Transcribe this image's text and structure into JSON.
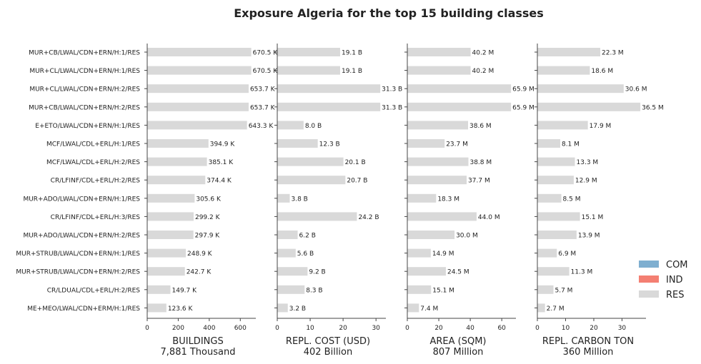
{
  "chart_data": {
    "type": "bar",
    "orientation": "horizontal",
    "title": "Exposure Algeria for the top 15 building classes",
    "categories": [
      "MUR+CB/LWAL/CDN+ERN/H:1/RES",
      "MUR+CL/LWAL/CDN+ERN/H:1/RES",
      "MUR+CL/LWAL/CDN+ERN/H:2/RES",
      "MUR+CB/LWAL/CDN+ERN/H:2/RES",
      "E+ETO/LWAL/CDN+ERN/H:1/RES",
      "MCF/LWAL/CDL+ERL/H:1/RES",
      "MCF/LWAL/CDL+ERL/H:2/RES",
      "CR/LFINF/CDL+ERL/H:2/RES",
      "MUR+ADO/LWAL/CDN+ERN/H:1/RES",
      "CR/LFINF/CDL+ERL/H:3/RES",
      "MUR+ADO/LWAL/CDN+ERN/H:2/RES",
      "MUR+STRUB/LWAL/CDN+ERN/H:1/RES",
      "MUR+STRUB/LWAL/CDN+ERN/H:2/RES",
      "CR/LDUAL/CDL+ERL/H:2/RES",
      "ME+MEO/LWAL/CDN+ERM/H:1/RES"
    ],
    "panels": [
      {
        "xlabel": "BUILDINGS",
        "total": "7,881 Thousand",
        "xlim": [
          0,
          700
        ],
        "xticks": [
          0,
          200,
          400,
          600
        ],
        "xtick_labels": [
          "0",
          "200",
          "400",
          "600"
        ],
        "values": [
          670.5,
          670.5,
          653.7,
          653.7,
          643.3,
          394.9,
          385.1,
          374.4,
          305.6,
          299.2,
          297.9,
          248.9,
          242.7,
          149.7,
          123.6
        ],
        "labels": [
          "670.5 K",
          "670.5 K",
          "653.7 K",
          "653.7 K",
          "643.3 K",
          "394.9 K",
          "385.1 K",
          "374.4 K",
          "305.6 K",
          "299.2 K",
          "297.9 K",
          "248.9 K",
          "242.7 K",
          "149.7 K",
          "123.6 K"
        ]
      },
      {
        "xlabel": "REPL. COST (USD)",
        "total": "402 Billion",
        "xlim": [
          0,
          33
        ],
        "xticks": [
          0,
          10,
          20,
          30
        ],
        "xtick_labels": [
          "0",
          "10",
          "20",
          "30"
        ],
        "values": [
          19.1,
          19.1,
          31.3,
          31.3,
          8.0,
          12.3,
          20.1,
          20.7,
          3.8,
          24.2,
          6.2,
          5.6,
          9.2,
          8.3,
          3.2
        ],
        "labels": [
          "19.1 B",
          "19.1 B",
          "31.3 B",
          "31.3 B",
          "8.0 B",
          "12.3 B",
          "20.1 B",
          "20.7 B",
          "3.8 B",
          "24.2 B",
          "6.2 B",
          "5.6 B",
          "9.2 B",
          "8.3 B",
          "3.2 B"
        ]
      },
      {
        "xlabel": "AREA (SQM)",
        "total": "807 Million",
        "xlim": [
          0,
          69
        ],
        "xticks": [
          0,
          20,
          40,
          60
        ],
        "xtick_labels": [
          "0",
          "20",
          "40",
          "60"
        ],
        "values": [
          40.2,
          40.2,
          65.9,
          65.9,
          38.6,
          23.7,
          38.8,
          37.7,
          18.3,
          44.0,
          30.0,
          14.9,
          24.5,
          15.1,
          7.4
        ],
        "labels": [
          "40.2 M",
          "40.2 M",
          "65.9 M",
          "65.9 M",
          "38.6 M",
          "23.7 M",
          "38.8 M",
          "37.7 M",
          "18.3 M",
          "44.0 M",
          "30.0 M",
          "14.9 M",
          "24.5 M",
          "15.1 M",
          "7.4 M"
        ]
      },
      {
        "xlabel": "REPL. CARBON TON",
        "total": "360 Million",
        "xlim": [
          0,
          38.5
        ],
        "xticks": [
          0,
          10,
          20,
          30
        ],
        "xtick_labels": [
          "0",
          "10",
          "20",
          "30"
        ],
        "values": [
          22.3,
          18.6,
          30.6,
          36.5,
          17.9,
          8.1,
          13.3,
          12.9,
          8.5,
          15.1,
          13.9,
          6.9,
          11.3,
          5.7,
          2.7
        ],
        "labels": [
          "22.3 M",
          "18.6 M",
          "30.6 M",
          "36.5 M",
          "17.9 M",
          "8.1 M",
          "13.3 M",
          "12.9 M",
          "8.5 M",
          "15.1 M",
          "13.9 M",
          "6.9 M",
          "11.3 M",
          "5.7 M",
          "2.7 M"
        ]
      }
    ],
    "legend": {
      "position": "right",
      "items": [
        {
          "name": "COM",
          "color": "#7fafd0"
        },
        {
          "name": "IND",
          "color": "#f47f72"
        },
        {
          "name": "RES",
          "color": "#d9d9d9"
        }
      ]
    },
    "bar_color": "#d9d9d9",
    "grid": false
  }
}
